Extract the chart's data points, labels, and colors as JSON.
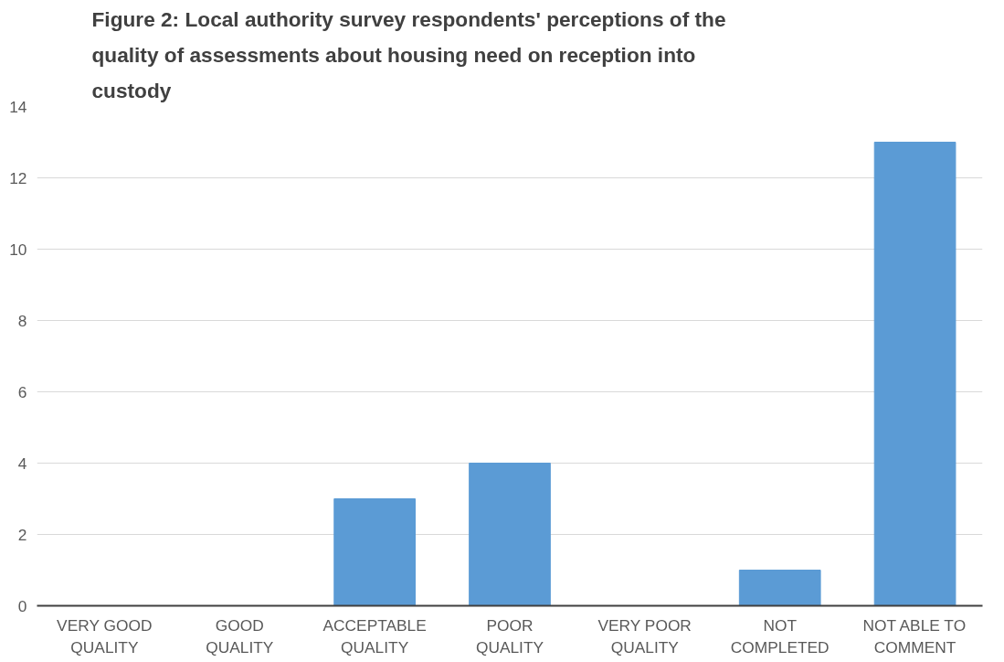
{
  "chart_data": {
    "type": "bar",
    "title": "Figure 2: Local authority survey respondents' perceptions of the quality  of assessments about housing need on reception into custody",
    "categories": [
      "VERY GOOD\nQUALITY",
      "GOOD\nQUALITY",
      "ACCEPTABLE\nQUALITY",
      "POOR\nQUALITY",
      "VERY POOR\nQUALITY",
      "NOT\nCOMPLETED",
      "NOT ABLE TO\nCOMMENT"
    ],
    "values": [
      0,
      0,
      3,
      4,
      0,
      1,
      13
    ],
    "color": "#5b9bd5",
    "ylim": [
      0,
      14
    ],
    "yticks": [
      0,
      2,
      4,
      6,
      8,
      10,
      12,
      14
    ],
    "grid": "y"
  }
}
